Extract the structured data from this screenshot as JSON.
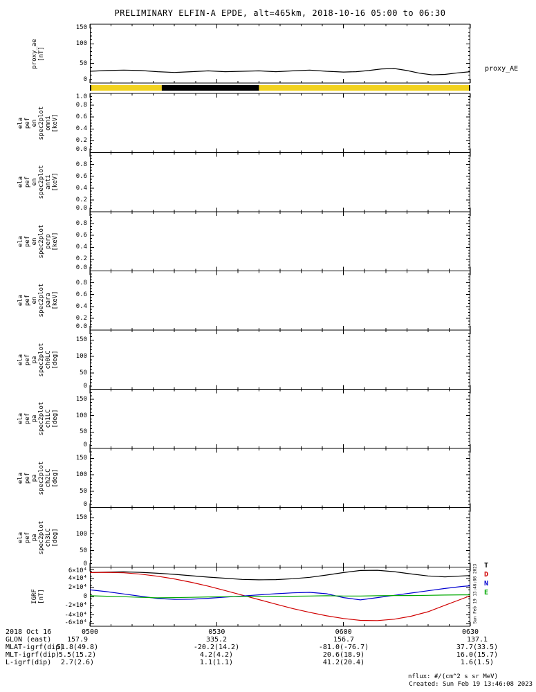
{
  "title": "PRELIMINARY ELFIN-A EPDE, alt=465km, 2018-10-16 05:00 to 06:30",
  "colors": {
    "axis": "#000000",
    "mode_yellow": "#f2d21f",
    "igrf_total": "#000000",
    "igrf_d": "#d00000",
    "igrf_n": "#0000d0",
    "igrf_e": "#00a800"
  },
  "right_labels": {
    "proxy_ae": "proxy_AE",
    "igrf_legend": [
      {
        "t": "T",
        "c": "#000000"
      },
      {
        "t": "D",
        "c": "#d00000"
      },
      {
        "t": "N",
        "c": "#0000d0"
      },
      {
        "t": "E",
        "c": "#00a800"
      }
    ]
  },
  "side_timestamp": "Sun Feb 19 13:46:08 2023",
  "mode_bar": {
    "segments": [
      {
        "t0": 0,
        "t1": 17,
        "c": "#f2d21f"
      },
      {
        "t0": 17,
        "t1": 40,
        "c": "#000000"
      },
      {
        "t0": 40,
        "t1": 90,
        "c": "#f2d21f"
      }
    ]
  },
  "time_axis": {
    "ticks": [
      "0500",
      "0530",
      "0600",
      "0630"
    ],
    "tick_minutes": [
      0,
      30,
      60,
      90
    ],
    "minor_step_minutes": 5
  },
  "bottom_table": {
    "date_label": "2018 Oct 16",
    "rows": [
      {
        "label": "GLON (east)",
        "values": [
          "157.9",
          "335.2",
          "156.7",
          "137.1"
        ]
      },
      {
        "label": "MLAT-igrf(dip)",
        "values": [
          "51.8(49.8)",
          "-20.2(14.2)",
          "-81.0(-76.7)",
          "37.7(33.5)"
        ]
      },
      {
        "label": "MLT-igrf(dip)",
        "values": [
          "5.5(15.2)",
          "4.2(4.2)",
          "20.6(18.9)",
          "16.0(15.7)"
        ]
      },
      {
        "label": "L-igrf(dip)",
        "values": [
          "2.7(2.6)",
          "1.1(1.1)",
          "41.2(20.4)",
          "1.6(1.5)"
        ]
      }
    ]
  },
  "footer": {
    "nflux": "nflux: #/(cm^2 s sr MeV)",
    "created": "Created: Sun Feb 19 13:46:08 2023"
  },
  "chart_data": [
    {
      "type": "line",
      "name": "proxy_ae",
      "ylabel_lines": [
        "proxy_ae",
        "[nT]"
      ],
      "yrange": [
        0,
        150
      ],
      "ymajor": [
        0,
        50,
        100,
        150
      ],
      "yminor_step": 10,
      "ytick_labels": [
        {
          "v": 150,
          "t": "150"
        },
        {
          "v": 100,
          "t": "100"
        },
        {
          "v": 50,
          "t": "50"
        },
        {
          "v": 0,
          "t": "0"
        }
      ],
      "series": [
        {
          "name": "proxy_AE",
          "color": "#000000",
          "x": [
            0,
            4,
            8,
            12,
            16,
            20,
            24,
            28,
            32,
            36,
            40,
            44,
            48,
            52,
            56,
            60,
            63,
            66,
            69,
            72,
            75,
            78,
            81,
            84,
            87,
            90
          ],
          "y": [
            30,
            32,
            33,
            32,
            29,
            27,
            29,
            31,
            29,
            30,
            31,
            29,
            31,
            33,
            30,
            28,
            29,
            32,
            36,
            37,
            32,
            25,
            21,
            22,
            26,
            29
          ]
        }
      ]
    },
    {
      "type": "heatmap",
      "name": "ela_pef_en_spec2plot_omni",
      "ylabel_lines": [
        "ela",
        "pef",
        "en",
        "spec2plot",
        "omni",
        "[keV]"
      ],
      "yrange": [
        0,
        1.0
      ],
      "ymajor": [
        0,
        0.2,
        0.4,
        0.6,
        0.8,
        1.0
      ],
      "yminor_step": 0.05,
      "ytick_labels": [
        {
          "v": 1.0,
          "t": "1.0"
        },
        {
          "v": 0.8,
          "t": "0.8"
        },
        {
          "v": 0.6,
          "t": "0.6"
        },
        {
          "v": 0.4,
          "t": "0.4"
        },
        {
          "v": 0.2,
          "t": "0.2"
        },
        {
          "v": 0.0,
          "t": "0.0"
        }
      ],
      "series": []
    },
    {
      "type": "heatmap",
      "name": "ela_pef_en_spec2plot_anti",
      "ylabel_lines": [
        "ela",
        "pef",
        "en",
        "spec2plot",
        "anti",
        "[keV]"
      ],
      "yrange": [
        0,
        1.0
      ],
      "ymajor": [
        0,
        0.2,
        0.4,
        0.6,
        0.8,
        1.0
      ],
      "yminor_step": 0.05,
      "ytick_labels": [
        {
          "v": 0.8,
          "t": "0.8"
        },
        {
          "v": 0.6,
          "t": "0.6"
        },
        {
          "v": 0.4,
          "t": "0.4"
        },
        {
          "v": 0.2,
          "t": "0.2"
        },
        {
          "v": 0.0,
          "t": "0.0"
        }
      ],
      "series": []
    },
    {
      "type": "heatmap",
      "name": "ela_pef_en_spec2plot_perp",
      "ylabel_lines": [
        "ela",
        "pef",
        "en",
        "spec2plot",
        "perp",
        "[keV]"
      ],
      "yrange": [
        0,
        1.0
      ],
      "ymajor": [
        0,
        0.2,
        0.4,
        0.6,
        0.8,
        1.0
      ],
      "yminor_step": 0.05,
      "ytick_labels": [
        {
          "v": 0.8,
          "t": "0.8"
        },
        {
          "v": 0.6,
          "t": "0.6"
        },
        {
          "v": 0.4,
          "t": "0.4"
        },
        {
          "v": 0.2,
          "t": "0.2"
        },
        {
          "v": 0.0,
          "t": "0.0"
        }
      ],
      "series": []
    },
    {
      "type": "heatmap",
      "name": "ela_pef_en_spec2plot_para",
      "ylabel_lines": [
        "ela",
        "pef",
        "en",
        "spec2plot",
        "para",
        "[keV]"
      ],
      "yrange": [
        0,
        1.0
      ],
      "ymajor": [
        0,
        0.2,
        0.4,
        0.6,
        0.8,
        1.0
      ],
      "yminor_step": 0.05,
      "ytick_labels": [
        {
          "v": 0.8,
          "t": "0.8"
        },
        {
          "v": 0.6,
          "t": "0.6"
        },
        {
          "v": 0.4,
          "t": "0.4"
        },
        {
          "v": 0.2,
          "t": "0.2"
        },
        {
          "v": 0.0,
          "t": "0.0"
        }
      ],
      "series": []
    },
    {
      "type": "heatmap",
      "name": "ela_pef_pa_spec2plot_ch0LC",
      "ylabel_lines": [
        "ela",
        "pef",
        "pa",
        "spec2plot",
        "ch0LC",
        "[deg]"
      ],
      "yrange": [
        0,
        180
      ],
      "ymajor": [
        0,
        50,
        100,
        150
      ],
      "yminor_step": 10,
      "ytick_labels": [
        {
          "v": 150,
          "t": "150"
        },
        {
          "v": 100,
          "t": "100"
        },
        {
          "v": 50,
          "t": "50"
        },
        {
          "v": 0,
          "t": "0"
        }
      ],
      "series": []
    },
    {
      "type": "heatmap",
      "name": "ela_pef_pa_spec2plot_ch1LC",
      "ylabel_lines": [
        "ela",
        "pef",
        "pa",
        "spec2plot",
        "ch1LC",
        "[deg]"
      ],
      "yrange": [
        0,
        180
      ],
      "ymajor": [
        0,
        50,
        100,
        150
      ],
      "yminor_step": 10,
      "ytick_labels": [
        {
          "v": 150,
          "t": "150"
        },
        {
          "v": 100,
          "t": "100"
        },
        {
          "v": 50,
          "t": "50"
        },
        {
          "v": 0,
          "t": "0"
        }
      ],
      "series": []
    },
    {
      "type": "heatmap",
      "name": "ela_pef_pa_spec2plot_ch2LC",
      "ylabel_lines": [
        "ela",
        "pef",
        "pa",
        "spec2plot",
        "ch2LC",
        "[deg]"
      ],
      "yrange": [
        0,
        180
      ],
      "ymajor": [
        0,
        50,
        100,
        150
      ],
      "yminor_step": 10,
      "ytick_labels": [
        {
          "v": 150,
          "t": "150"
        },
        {
          "v": 100,
          "t": "100"
        },
        {
          "v": 50,
          "t": "50"
        },
        {
          "v": 0,
          "t": "0"
        }
      ],
      "series": []
    },
    {
      "type": "heatmap",
      "name": "ela_pef_pa_spec2plot_ch3LC",
      "ylabel_lines": [
        "ela",
        "pef",
        "pa",
        "spec2plot",
        "ch3LC",
        "[deg]"
      ],
      "yrange": [
        0,
        180
      ],
      "ymajor": [
        0,
        50,
        100,
        150
      ],
      "yminor_step": 10,
      "ytick_labels": [
        {
          "v": 150,
          "t": "150"
        },
        {
          "v": 100,
          "t": "100"
        },
        {
          "v": 50,
          "t": "50"
        },
        {
          "v": 0,
          "t": "0"
        }
      ],
      "series": []
    },
    {
      "type": "line",
      "name": "IGRF",
      "ylabel_lines": [
        "IGRF",
        "[nT]"
      ],
      "yrange": [
        -65000,
        65000
      ],
      "ymajor": [
        -60000,
        -40000,
        -20000,
        0,
        20000,
        40000,
        60000
      ],
      "yminor_step": 10000,
      "ytick_labels": [
        {
          "v": 60000,
          "t": "6×10⁴"
        },
        {
          "v": 40000,
          "t": "4×10⁴"
        },
        {
          "v": 20000,
          "t": "2×10⁴"
        },
        {
          "v": 0,
          "t": "0"
        },
        {
          "v": -20000,
          "t": "-2×10⁴"
        },
        {
          "v": -40000,
          "t": "-4×10⁴"
        },
        {
          "v": -60000,
          "t": "-6×10⁴"
        }
      ],
      "series": [
        {
          "name": "T",
          "color": "#000000",
          "x": [
            0,
            4,
            8,
            12,
            16,
            20,
            24,
            28,
            32,
            36,
            40,
            44,
            48,
            52,
            56,
            60,
            64,
            68,
            72,
            76,
            80,
            84,
            88,
            90
          ],
          "y": [
            53000,
            54000,
            54500,
            53500,
            51500,
            49000,
            46000,
            43000,
            40500,
            38000,
            37000,
            37500,
            39500,
            42500,
            47500,
            53000,
            57500,
            58000,
            55000,
            50000,
            45500,
            43500,
            45500,
            46500
          ]
        },
        {
          "name": "D",
          "color": "#d00000",
          "x": [
            0,
            4,
            8,
            12,
            16,
            20,
            24,
            28,
            32,
            36,
            40,
            44,
            48,
            52,
            56,
            60,
            64,
            68,
            72,
            76,
            80,
            84,
            88,
            90
          ],
          "y": [
            53000,
            53500,
            52500,
            49500,
            45000,
            39000,
            31500,
            23000,
            13500,
            3500,
            -6500,
            -16500,
            -26000,
            -34500,
            -42000,
            -48000,
            -52000,
            -52500,
            -49500,
            -43000,
            -33000,
            -19000,
            -5000,
            2000
          ]
        },
        {
          "name": "N",
          "color": "#0000d0",
          "x": [
            0,
            4,
            8,
            12,
            16,
            20,
            24,
            28,
            32,
            36,
            40,
            44,
            48,
            52,
            56,
            60,
            64,
            68,
            72,
            76,
            80,
            84,
            88,
            90
          ],
          "y": [
            15000,
            11000,
            6000,
            1000,
            -4000,
            -6000,
            -5500,
            -3500,
            -1000,
            1500,
            4000,
            6500,
            8500,
            9500,
            6500,
            -2000,
            -7000,
            -2000,
            3000,
            8000,
            13000,
            18000,
            22500,
            24000
          ]
        },
        {
          "name": "E",
          "color": "#00a800",
          "x": [
            0,
            4,
            8,
            12,
            16,
            20,
            24,
            28,
            32,
            36,
            40,
            44,
            48,
            52,
            56,
            60,
            64,
            68,
            72,
            76,
            80,
            84,
            88,
            90
          ],
          "y": [
            2000,
            1000,
            0,
            -1500,
            -2500,
            -2000,
            -1500,
            -500,
            0,
            500,
            500,
            1000,
            1000,
            1500,
            2000,
            1500,
            1500,
            2000,
            2500,
            2500,
            3000,
            3500,
            4000,
            4000
          ]
        }
      ]
    }
  ]
}
